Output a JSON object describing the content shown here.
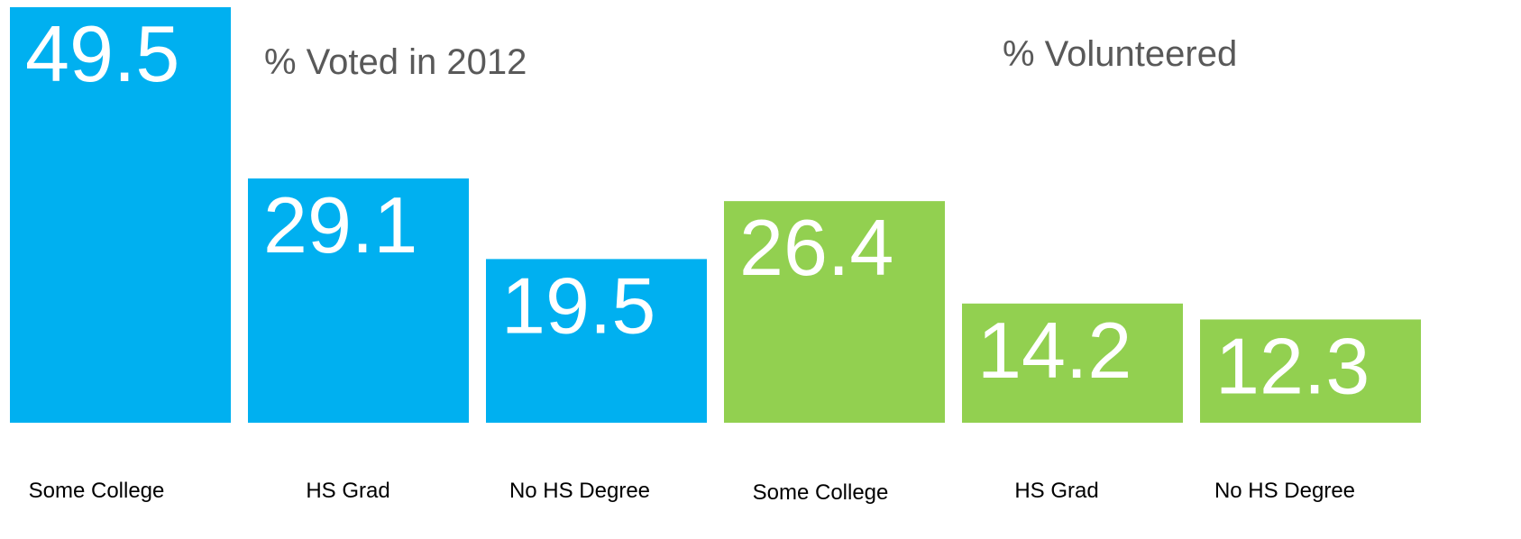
{
  "chart_data": {
    "type": "bar",
    "groups": [
      {
        "title": "% Voted in 2012",
        "color": "#00B0F0",
        "categories": [
          "Some College",
          "HS Grad",
          "No HS Degree"
        ],
        "values": [
          49.5,
          29.1,
          19.5
        ]
      },
      {
        "title": "% Volunteered",
        "color": "#92D050",
        "categories": [
          "Some College",
          "HS Grad",
          "No HS Degree"
        ],
        "values": [
          26.4,
          14.2,
          12.3
        ]
      }
    ],
    "xlabel": "",
    "ylabel": "",
    "ylim": [
      0,
      49.5
    ],
    "grid": false,
    "legend": "none"
  }
}
